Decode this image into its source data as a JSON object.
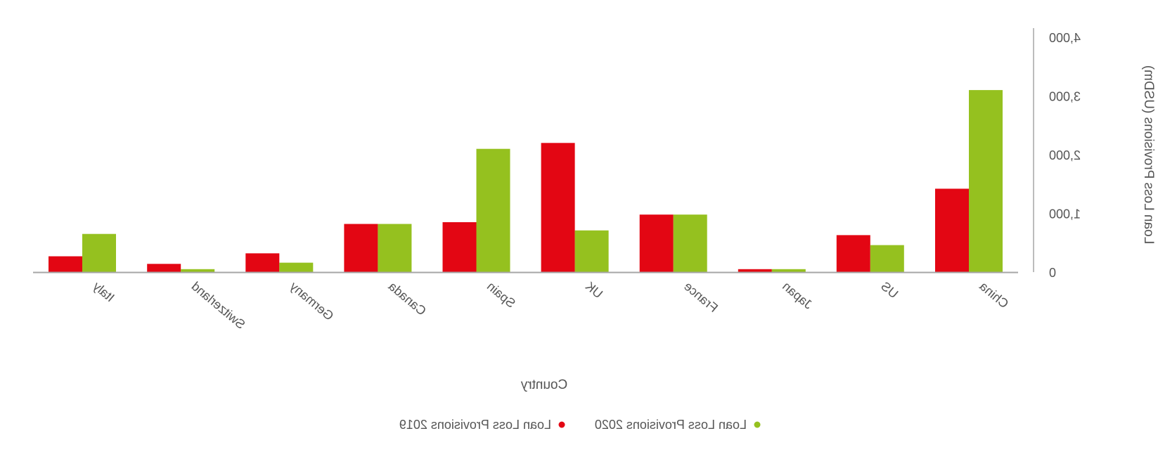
{
  "chart_data": {
    "type": "bar",
    "title": "",
    "xlabel": "Country",
    "ylabel": "Loan Loss Provisions (USDm)",
    "ylim": [
      0,
      4000
    ],
    "y_ticks": [
      0,
      1000,
      2000,
      3000,
      4000
    ],
    "y_tick_labels": [
      "0",
      "1,000",
      "2,000",
      "3,000",
      "4,000"
    ],
    "axis_position": "right",
    "orientation_note": "horizontally mirrored rendering",
    "grid": false,
    "legend_position": "bottom-center",
    "categories": [
      "China",
      "US",
      "Japan",
      "France",
      "UK",
      "Spain",
      "Canada",
      "Germany",
      "Switzerland",
      "Italy"
    ],
    "series": [
      {
        "name": "Loan Loss Provisions 2019",
        "color": "#e30613",
        "values": [
          1420,
          630,
          50,
          980,
          2200,
          850,
          820,
          320,
          140,
          270
        ]
      },
      {
        "name": "Loan Loss Provisions 2020",
        "color": "#95c11f",
        "values": [
          3100,
          460,
          50,
          980,
          710,
          2100,
          820,
          160,
          50,
          650
        ]
      }
    ]
  }
}
